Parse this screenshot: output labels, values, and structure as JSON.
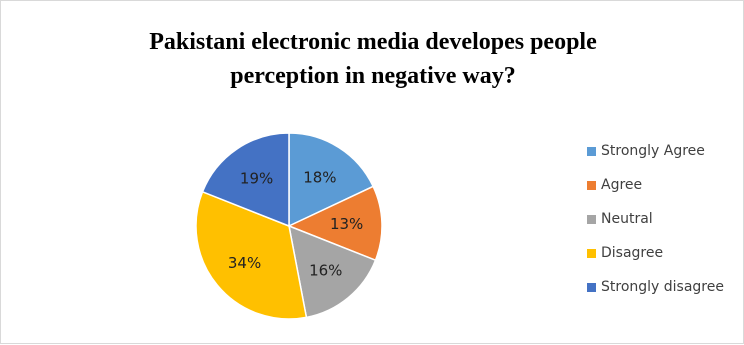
{
  "chart_data": {
    "type": "pie",
    "title": [
      "Pakistani electronic media developes people",
      "perception in negative way?"
    ],
    "categories": [
      "Strongly Agree",
      "Agree",
      "Neutral",
      "Disagree",
      "Strongly disagree"
    ],
    "values": [
      18,
      13,
      16,
      34,
      19
    ],
    "labels": [
      "18%",
      "13%",
      "16%",
      "34%",
      "19%"
    ],
    "colors": [
      "#5b9bd5",
      "#ed7d31",
      "#a5a5a5",
      "#ffc000",
      "#4472c4"
    ],
    "legend_position": "right"
  }
}
